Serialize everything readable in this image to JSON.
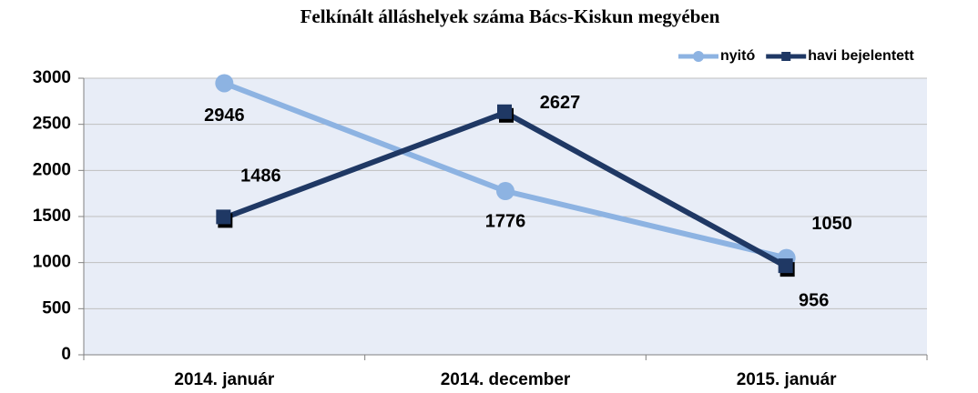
{
  "chart_data": {
    "type": "line",
    "title": "Felkínált álláshelyek száma Bács-Kiskun megyében",
    "categories": [
      "2014. január",
      "2014. december",
      "2015. január"
    ],
    "series": [
      {
        "name": "nyitó",
        "color": "#8db3e2",
        "values": [
          2946,
          1776,
          1050
        ]
      },
      {
        "name": "havi bejelentett",
        "color": "#1f3864",
        "values": [
          1486,
          2627,
          956
        ]
      }
    ],
    "ylim": [
      0,
      3000
    ],
    "yticks": [
      0,
      500,
      1000,
      1500,
      2000,
      2500,
      3000
    ],
    "grid": true,
    "legend": "top-right"
  }
}
